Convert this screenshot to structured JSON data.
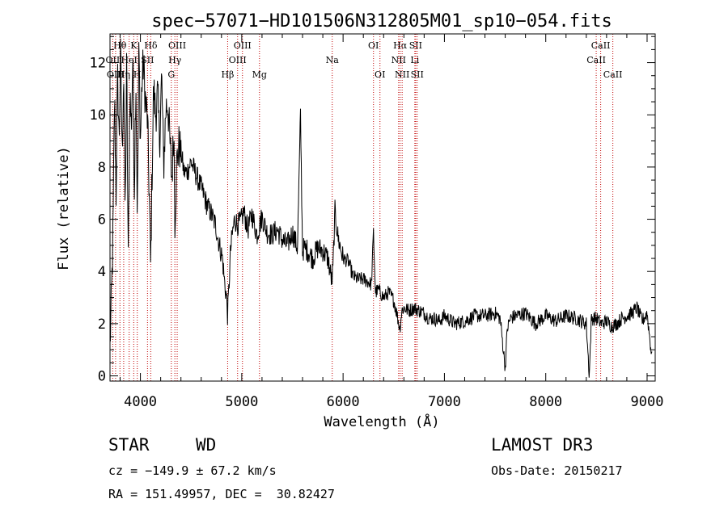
{
  "chart_data": {
    "type": "line",
    "title": "spec−57071−HD101506N312805M01_sp10−054.fits",
    "xlabel": "Wavelength (Å)",
    "ylabel": "Flux (relative)",
    "xlim": [
      3700,
      9080
    ],
    "ylim": [
      -0.2,
      13.1
    ],
    "xticks": [
      "4000",
      "5000",
      "6000",
      "7000",
      "8000",
      "9000"
    ],
    "xtick_values": [
      4000,
      5000,
      6000,
      7000,
      8000,
      9000
    ],
    "yticks": [
      "0",
      "2",
      "4",
      "6",
      "8",
      "10",
      "12"
    ],
    "ytick_values": [
      0,
      2,
      4,
      6,
      8,
      10,
      12
    ],
    "series": [
      {
        "name": "flux",
        "x": [
          3700,
          3715,
          3730,
          3745,
          3760,
          3775,
          3790,
          3805,
          3820,
          3835,
          3850,
          3865,
          3880,
          3895,
          3910,
          3925,
          3940,
          3955,
          3970,
          3985,
          4000,
          4015,
          4030,
          4050,
          4070,
          4090,
          4101,
          4110,
          4130,
          4150,
          4170,
          4190,
          4210,
          4230,
          4250,
          4270,
          4290,
          4310,
          4330,
          4340,
          4360,
          4380,
          4400,
          4430,
          4460,
          4500,
          4540,
          4580,
          4620,
          4660,
          4700,
          4740,
          4780,
          4810,
          4830,
          4850,
          4861,
          4875,
          4890,
          4910,
          4930,
          4960,
          4990,
          5020,
          5060,
          5100,
          5150,
          5200,
          5250,
          5300,
          5350,
          5400,
          5450,
          5500,
          5550,
          5580,
          5600,
          5620,
          5650,
          5700,
          5750,
          5800,
          5850,
          5890,
          5900,
          5920,
          5950,
          6000,
          6050,
          6100,
          6150,
          6200,
          6250,
          6280,
          6300,
          6320,
          6350,
          6400,
          6450,
          6500,
          6530,
          6560,
          6580,
          6600,
          6650,
          6700,
          6750,
          6800,
          6850,
          6900,
          6950,
          7000,
          7100,
          7200,
          7300,
          7400,
          7500,
          7550,
          7600,
          7620,
          7650,
          7700,
          7800,
          7900,
          8000,
          8100,
          8200,
          8300,
          8400,
          8430,
          8450,
          8500,
          8550,
          8600,
          8650,
          8700,
          8750,
          8800,
          8850,
          8900,
          8950,
          9000,
          9050
        ],
        "y": [
          1.2,
          3.0,
          5.5,
          10.8,
          7.0,
          11.5,
          9.0,
          12.4,
          8.5,
          11.8,
          6.0,
          12.1,
          4.3,
          11.0,
          9.5,
          12.3,
          7.2,
          11.6,
          6.0,
          12.6,
          9.0,
          11.2,
          12.0,
          10.5,
          9.8,
          6.5,
          4.0,
          6.5,
          11.0,
          10.0,
          10.8,
          9.0,
          11.5,
          8.0,
          10.2,
          10.5,
          9.0,
          7.5,
          9.5,
          6.0,
          8.2,
          8.8,
          8.6,
          7.8,
          7.8,
          8.2,
          7.8,
          7.4,
          7.0,
          6.5,
          6.2,
          5.8,
          5.0,
          4.5,
          3.6,
          3.0,
          2.3,
          3.5,
          4.8,
          5.5,
          6.0,
          5.8,
          5.9,
          6.3,
          5.6,
          6.2,
          5.4,
          6.1,
          5.5,
          5.4,
          5.6,
          5.2,
          5.0,
          5.5,
          4.9,
          10.0,
          4.8,
          4.9,
          4.8,
          4.5,
          4.9,
          4.8,
          4.5,
          3.6,
          4.1,
          6.3,
          5.3,
          4.5,
          4.4,
          3.8,
          3.7,
          3.7,
          3.6,
          3.5,
          5.5,
          3.2,
          3.3,
          3.0,
          3.2,
          2.9,
          2.4,
          1.8,
          2.5,
          2.6,
          2.5,
          2.6,
          2.5,
          2.4,
          2.2,
          2.2,
          2.1,
          2.3,
          2.0,
          2.1,
          2.3,
          2.3,
          2.4,
          2.2,
          0.3,
          1.8,
          2.2,
          2.3,
          2.4,
          2.0,
          2.3,
          2.1,
          2.3,
          2.2,
          2.0,
          0.0,
          2.2,
          2.2,
          2.0,
          2.1,
          1.9,
          2.0,
          2.2,
          2.3,
          2.4,
          2.6,
          2.1,
          2.4,
          0.6
        ]
      }
    ],
    "lines": [
      {
        "label": "Hθ",
        "x": 3798,
        "row": 1
      },
      {
        "label": "K",
        "x": 3934,
        "row": 1
      },
      {
        "label": "Hδ",
        "x": 4102,
        "row": 1
      },
      {
        "label": "OII",
        "x": 3727,
        "row": 2
      },
      {
        "label": "HeI",
        "x": 3889,
        "row": 2
      },
      {
        "label": "SII",
        "x": 4070,
        "row": 2
      },
      {
        "label": "OIII",
        "x": 3755,
        "row": 3
      },
      {
        "label": "Hη",
        "x": 3835,
        "row": 3
      },
      {
        "label": "H",
        "x": 3969,
        "row": 3
      },
      {
        "label": "OIII",
        "x": 4363,
        "row": 1
      },
      {
        "label": "Hγ",
        "x": 4340,
        "row": 2
      },
      {
        "label": "G",
        "x": 4305,
        "row": 3
      },
      {
        "label": "OIII",
        "x": 5007,
        "row": 1
      },
      {
        "label": "OIII",
        "x": 4959,
        "row": 2
      },
      {
        "label": "Hβ",
        "x": 4861,
        "row": 3
      },
      {
        "label": "Mg",
        "x": 5175,
        "row": 3
      },
      {
        "label": "Na",
        "x": 5893,
        "row": 2
      },
      {
        "label": "OI",
        "x": 6300,
        "row": 1
      },
      {
        "label": "OI",
        "x": 6364,
        "row": 3
      },
      {
        "label": "Hα",
        "x": 6563,
        "row": 1
      },
      {
        "label": "SII",
        "x": 6716,
        "row": 1
      },
      {
        "label": "NII",
        "x": 6548,
        "row": 2
      },
      {
        "label": "Li",
        "x": 6708,
        "row": 2
      },
      {
        "label": "NII",
        "x": 6583,
        "row": 3
      },
      {
        "label": "SII",
        "x": 6731,
        "row": 3
      },
      {
        "label": "CaII",
        "x": 8542,
        "row": 1
      },
      {
        "label": "CaII",
        "x": 8498,
        "row": 2
      },
      {
        "label": "CaII",
        "x": 8662,
        "row": 3
      }
    ]
  },
  "footer": {
    "class_label": "STAR",
    "subclass": "WD",
    "survey": "LAMOST DR3",
    "cz": "cz = −149.9 ± 67.2 km/s",
    "obs_date": "Obs-Date: 20150217",
    "radec": "RA = 151.49957, DEC =  30.82427"
  }
}
